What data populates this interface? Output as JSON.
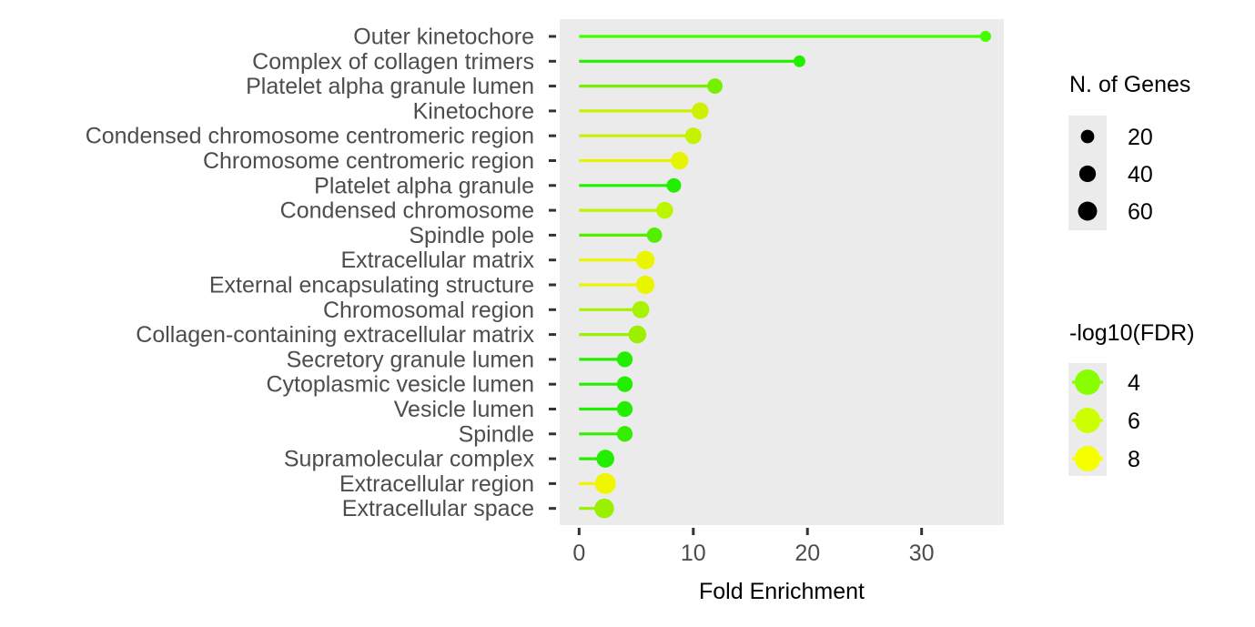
{
  "chart_data": {
    "type": "lollipop",
    "title": "",
    "xlabel": "Fold Enrichment",
    "ylabel": "",
    "xlim": [
      -1.7,
      37.2
    ],
    "x_ticks": [
      0,
      10,
      20,
      30
    ],
    "x_tick_labels": [
      "0",
      "10",
      "20",
      "30"
    ],
    "grid": false,
    "panel_background": "#EBEBEB",
    "categories": [
      "Outer kinetochore",
      "Complex of collagen trimers",
      "Platelet alpha granule lumen",
      "Kinetochore",
      "Condensed chromosome centromeric region",
      "Chromosome centromeric region",
      "Platelet alpha granule",
      "Condensed chromosome",
      "Spindle pole",
      "Extracellular matrix",
      "External encapsulating structure",
      "Chromosomal region",
      "Collagen-containing extracellular matrix",
      "Secretory granule lumen",
      "Cytoplasmic vesicle lumen",
      "Vesicle lumen",
      "Spindle",
      "Supramolecular complex",
      "Extracellular region",
      "Extracellular space"
    ],
    "values": [
      35.6,
      19.3,
      11.9,
      10.6,
      10.0,
      8.8,
      8.3,
      7.5,
      6.6,
      5.8,
      5.8,
      5.4,
      5.1,
      4.0,
      4.0,
      4.0,
      4.0,
      2.3,
      2.3,
      2.2
    ],
    "colors": [
      "#44FF00",
      "#22EE00",
      "#77F000",
      "#CCF000",
      "#C5F200",
      "#E5F500",
      "#22EE00",
      "#BBF500",
      "#55EE00",
      "#EAF500",
      "#EAF500",
      "#A8F200",
      "#9AF000",
      "#22EE00",
      "#22EE00",
      "#22EE00",
      "#33EE00",
      "#22EE00",
      "#F0F500",
      "#9AF000"
    ],
    "gene_counts": [
      6,
      8,
      22,
      30,
      28,
      35,
      18,
      30,
      22,
      40,
      40,
      32,
      36,
      24,
      24,
      24,
      24,
      36,
      58,
      48
    ],
    "legend_size": {
      "title": "N. of Genes",
      "labels": [
        "20",
        "40",
        "60"
      ],
      "values": [
        20,
        40,
        60
      ],
      "position": "right"
    },
    "legend_color": {
      "title": "-log10(FDR)",
      "labels": [
        "4",
        "6",
        "8"
      ],
      "colors": [
        "#88FF00",
        "#CCFF00",
        "#F5FF00"
      ],
      "position": "right"
    }
  }
}
